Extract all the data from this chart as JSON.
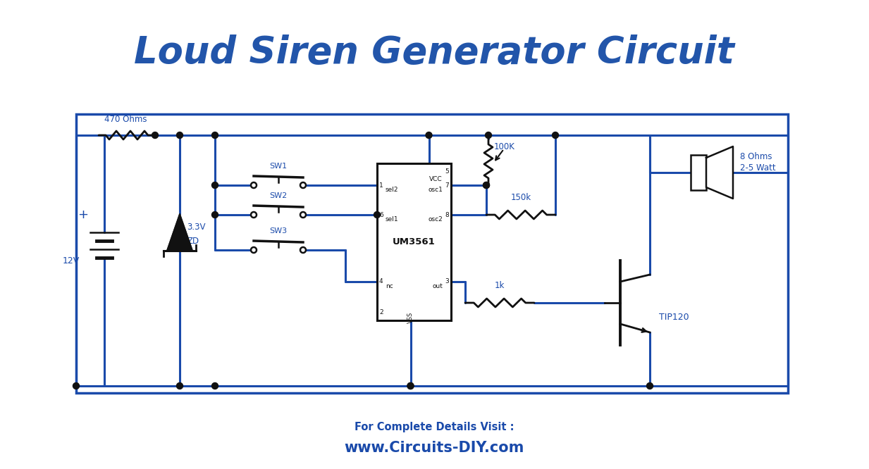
{
  "title": "Loud Siren Generator Circuit",
  "title_color": "#2255aa",
  "title_fontsize": 38,
  "circuit_color": "#1a4aaa",
  "black_color": "#111111",
  "bg_color": "#ffffff",
  "footer_line1": "For Complete Details Visit :",
  "footer_line2": "www.Circuits-DIY.com",
  "footer_color": "#1a4aaa",
  "border_color": "#1a4aaa",
  "label_color": "#1a4aaa",
  "lw_wire": 2.2,
  "lw_comp": 2.0,
  "lw_border": 2.5
}
